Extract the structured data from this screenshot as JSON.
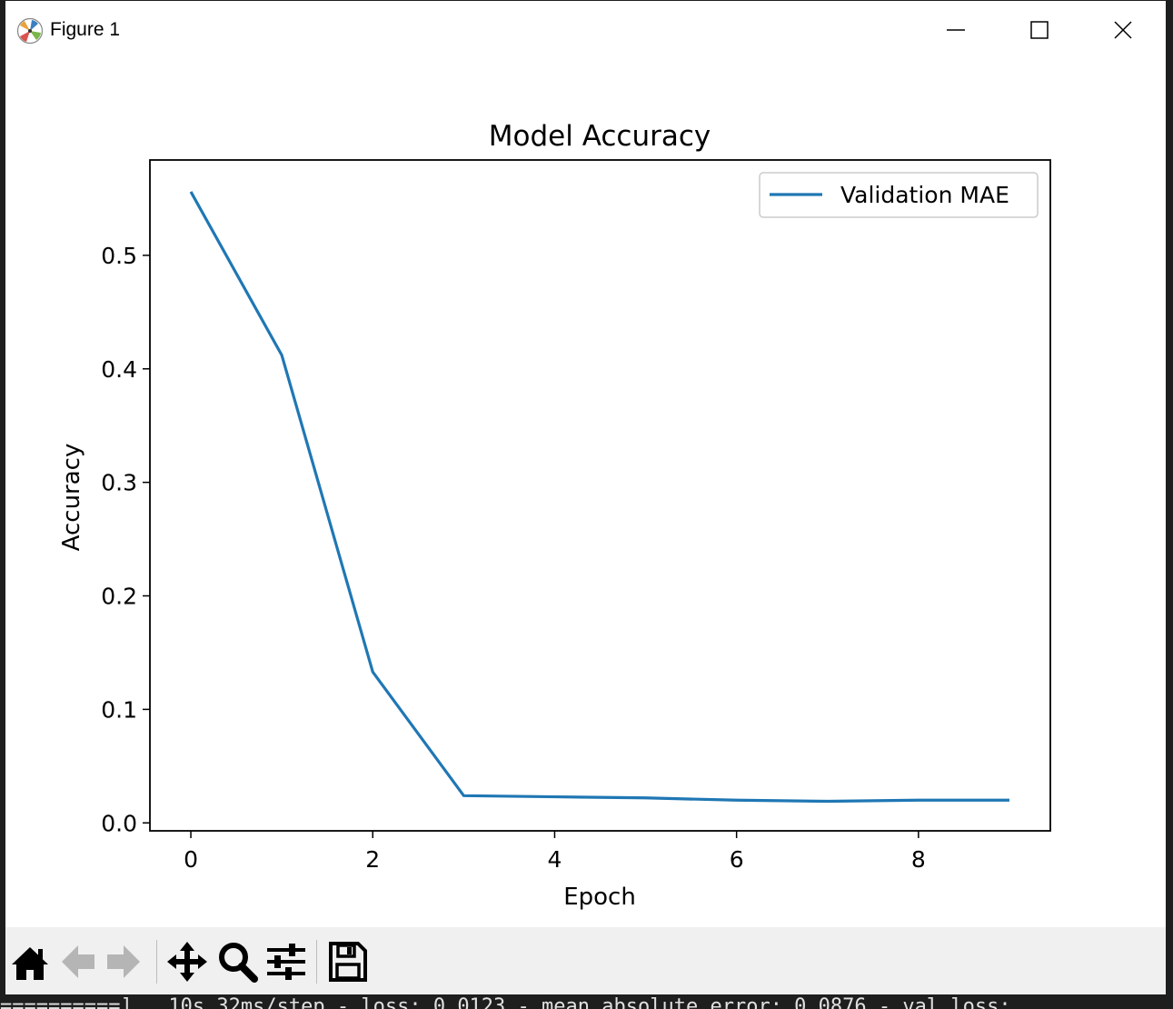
{
  "window": {
    "title": "Figure 1",
    "buttons": {
      "minimize": "minimize",
      "maximize": "maximize",
      "close": "close"
    }
  },
  "terminal": {
    "bottom_line": "==========]   10s 32ms/step - loss: 0.0123 - mean_absolute_error: 0.0876 - val_loss: "
  },
  "toolbar": {
    "items": [
      {
        "name": "home",
        "icon": "home-icon"
      },
      {
        "name": "back",
        "icon": "back-arrow-icon"
      },
      {
        "name": "forward",
        "icon": "forward-arrow-icon"
      },
      {
        "name": "pan",
        "icon": "pan-icon"
      },
      {
        "name": "zoom",
        "icon": "zoom-icon"
      },
      {
        "name": "configure-subplots",
        "icon": "sliders-icon"
      },
      {
        "name": "save",
        "icon": "save-icon"
      }
    ]
  },
  "chart_data": {
    "type": "line",
    "title": "Model Accuracy",
    "xlabel": "Epoch",
    "ylabel": "Accuracy",
    "x": [
      0,
      1,
      2,
      3,
      4,
      5,
      6,
      7,
      8,
      9
    ],
    "series": [
      {
        "name": "Validation MAE",
        "color": "#1f77b4",
        "values": [
          0.556,
          0.412,
          0.133,
          0.024,
          0.023,
          0.022,
          0.02,
          0.019,
          0.02,
          0.02
        ]
      }
    ],
    "xlim": [
      -0.45,
      9.45
    ],
    "ylim": [
      -0.007,
      0.584
    ],
    "xticks": [
      0,
      2,
      4,
      6,
      8
    ],
    "yticks": [
      0.0,
      0.1,
      0.2,
      0.3,
      0.4,
      0.5
    ],
    "ytick_labels": [
      "0.0",
      "0.1",
      "0.2",
      "0.3",
      "0.4",
      "0.5"
    ],
    "grid": false,
    "legend": "upper right"
  }
}
